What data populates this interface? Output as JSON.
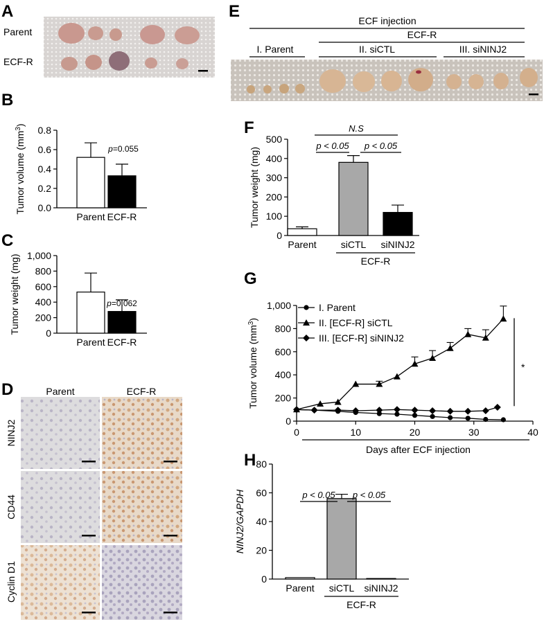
{
  "panel_labels": [
    "A",
    "B",
    "C",
    "D",
    "E",
    "F",
    "G",
    "H"
  ],
  "photo_a": {
    "row_labels": [
      "Parent",
      "ECF-R"
    ]
  },
  "photo_e": {
    "header": "ECF injection",
    "subheader": "ECF-R",
    "groups": [
      "I. Parent",
      "II. siCTL",
      "III. siNINJ2"
    ]
  },
  "ihc_d": {
    "col_labels": [
      "Parent",
      "ECF-R"
    ],
    "row_labels": [
      "NINJ2",
      "CD44",
      "Cyclin D1"
    ]
  },
  "chart_data": [
    {
      "panel": "B",
      "type": "bar",
      "categories": [
        "Parent",
        "ECF-R"
      ],
      "values": [
        0.52,
        0.33
      ],
      "errors": [
        0.15,
        0.12
      ],
      "colors": [
        "#ffffff",
        "#000000"
      ],
      "ylabel_prefix": "Tumor volume (mm",
      "ylabel_sup": "3",
      "ylabel_suffix": ")",
      "ylim": [
        0,
        0.8
      ],
      "yticks": [
        "0.0",
        "0.2",
        "0.4",
        "0.6",
        "0.8"
      ],
      "pvalue_prefix": "p",
      "pvalue_text": "=0.055"
    },
    {
      "panel": "C",
      "type": "bar",
      "categories": [
        "Parent",
        "ECF-R"
      ],
      "values": [
        530,
        280
      ],
      "errors": [
        245,
        150
      ],
      "colors": [
        "#ffffff",
        "#000000"
      ],
      "ylabel": "Tumor weight (mg)",
      "ylim": [
        0,
        1000
      ],
      "yticks": [
        "0",
        "200",
        "400",
        "600",
        "800",
        "1,000"
      ],
      "pvalue_prefix": "p",
      "pvalue_text": "=0.062"
    },
    {
      "panel": "F",
      "type": "bar",
      "categories": [
        "Parent",
        "siCTL",
        "siNINJ2"
      ],
      "values": [
        35,
        380,
        120
      ],
      "errors": [
        10,
        35,
        38
      ],
      "colors": [
        "#ffffff",
        "#a8a8a8",
        "#000000"
      ],
      "ylabel": "Tumor weight (mg)",
      "ylim": [
        0,
        500
      ],
      "yticks": [
        "0",
        "100",
        "200",
        "300",
        "400",
        "500"
      ],
      "group_label": "ECF-R",
      "brackets": [
        {
          "from": 0,
          "to": 2,
          "text": "N.S",
          "italic": true
        },
        {
          "from": 0,
          "to": 1,
          "text": "p < 0.05",
          "italic": true
        },
        {
          "from": 1,
          "to": 2,
          "text": "p < 0.05",
          "italic": true
        }
      ]
    },
    {
      "panel": "G",
      "type": "line",
      "xlabel": "Days after ECF injection",
      "ylabel_prefix": "Tumor volume (mm",
      "ylabel_sup": "3",
      "ylabel_suffix": ")",
      "xlim": [
        0,
        40
      ],
      "ylim": [
        0,
        1000
      ],
      "xticks": [
        "0",
        "10",
        "20",
        "30",
        "40"
      ],
      "yticks": [
        "0",
        "200",
        "400",
        "600",
        "800",
        "1,000"
      ],
      "series": [
        {
          "name": "I. Parent",
          "marker": "circle",
          "x": [
            0,
            3,
            7,
            10,
            14,
            17,
            20,
            23,
            26,
            29,
            32,
            35
          ],
          "y": [
            100,
            95,
            85,
            75,
            65,
            60,
            50,
            40,
            30,
            25,
            15,
            12
          ]
        },
        {
          "name": "II. [ECF-R] siCTL",
          "marker": "triangle",
          "x": [
            0,
            4,
            7,
            10,
            14,
            17,
            20,
            23,
            26,
            29,
            32,
            35
          ],
          "y": [
            100,
            150,
            165,
            320,
            320,
            385,
            495,
            545,
            630,
            750,
            720,
            885
          ],
          "err": [
            0,
            0,
            0,
            0,
            25,
            0,
            60,
            65,
            50,
            50,
            70,
            110
          ]
        },
        {
          "name": "III. [ECF-R] siNINJ2",
          "marker": "diamond",
          "x": [
            0,
            3,
            7,
            10,
            14,
            17,
            20,
            23,
            26,
            29,
            32,
            34
          ],
          "y": [
            100,
            95,
            95,
            90,
            95,
            100,
            95,
            90,
            85,
            85,
            90,
            120
          ]
        }
      ],
      "annotation": "*"
    },
    {
      "panel": "H",
      "type": "bar",
      "categories": [
        "Parent",
        "siCTL",
        "siNINJ2"
      ],
      "values": [
        1,
        56,
        0
      ],
      "errors": [
        0,
        3,
        0
      ],
      "colors": [
        "#ffffff",
        "#a8a8a8",
        "#000000"
      ],
      "ylabel": "NINJ2/GAPDH",
      "ylabel_italic": true,
      "ylim": [
        0,
        80
      ],
      "yticks": [
        "0",
        "20",
        "40",
        "60",
        "80"
      ],
      "group_label": "ECF-R",
      "brackets": [
        {
          "from": 0,
          "to": 1,
          "text": "p < 0.05",
          "italic": true
        },
        {
          "from": 1,
          "to": 2,
          "text": "p < 0.05",
          "italic": true
        }
      ]
    }
  ]
}
